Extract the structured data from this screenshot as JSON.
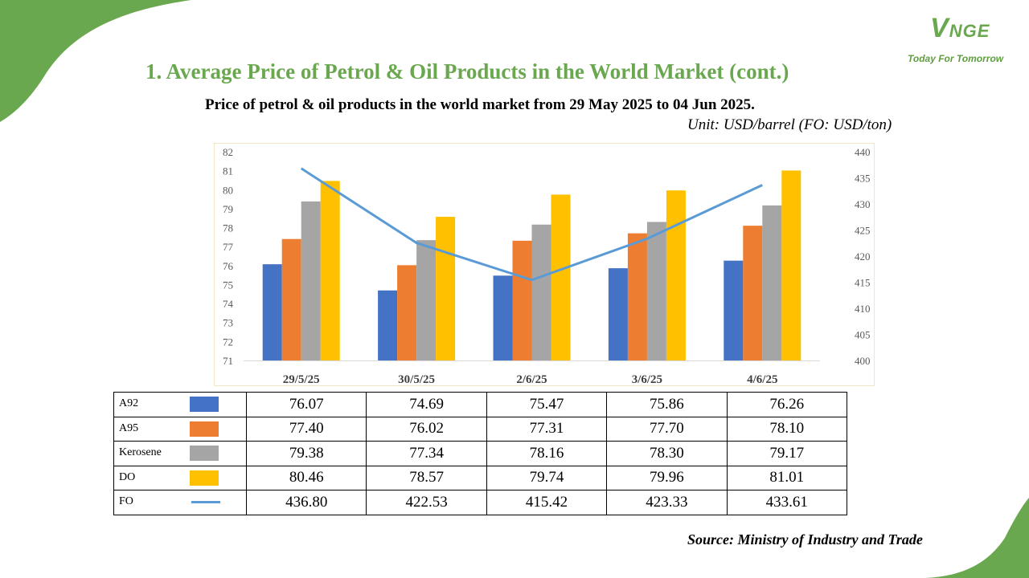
{
  "brand": {
    "logo_main": "V",
    "logo_rest": "NGE",
    "tagline": "Today For Tomorrow",
    "color": "#6aa84f"
  },
  "title": "1. Average Price of Petrol & Oil Products in the World Market (cont.)",
  "subtitle": "Price of petrol & oil products in the world market from 29 May 2025 to 04 Jun 2025.",
  "unit": "Unit: USD/barrel (FO: USD/ton)",
  "source": "Source: Ministry of Industry and Trade",
  "chart_data": {
    "type": "bar",
    "categories": [
      "29/5/25",
      "30/5/25",
      "2/6/25",
      "3/6/25",
      "4/6/25"
    ],
    "series": [
      {
        "name": "A92",
        "kind": "bar",
        "axis": "left",
        "color": "#4472c4",
        "values": [
          76.07,
          74.69,
          75.47,
          75.86,
          76.26
        ]
      },
      {
        "name": "A95",
        "kind": "bar",
        "axis": "left",
        "color": "#ed7d31",
        "values": [
          77.4,
          76.02,
          77.31,
          77.7,
          78.1
        ]
      },
      {
        "name": "Kerosene",
        "kind": "bar",
        "axis": "left",
        "color": "#a5a5a5",
        "values": [
          79.38,
          77.34,
          78.16,
          78.3,
          79.17
        ]
      },
      {
        "name": "DO",
        "kind": "bar",
        "axis": "left",
        "color": "#ffc000",
        "values": [
          80.46,
          78.57,
          79.74,
          79.96,
          81.01
        ]
      },
      {
        "name": "FO",
        "kind": "line",
        "axis": "right",
        "color": "#5b9bd5",
        "values": [
          436.8,
          422.53,
          415.42,
          423.33,
          433.61
        ]
      }
    ],
    "ylim_left": [
      71,
      82
    ],
    "yticks_left": [
      71,
      72,
      73,
      74,
      75,
      76,
      77,
      78,
      79,
      80,
      81,
      82
    ],
    "ylim_right": [
      400,
      440
    ],
    "yticks_right": [
      400,
      405,
      410,
      415,
      420,
      425,
      430,
      435,
      440
    ],
    "grid": false,
    "legend": "table-below"
  },
  "table": {
    "rows": [
      {
        "label": "A92",
        "values": [
          "76.07",
          "74.69",
          "75.47",
          "75.86",
          "76.26"
        ]
      },
      {
        "label": "A95",
        "values": [
          "77.40",
          "76.02",
          "77.31",
          "77.70",
          "78.10"
        ]
      },
      {
        "label": "Kerosene",
        "values": [
          "79.38",
          "77.34",
          "78.16",
          "78.30",
          "79.17"
        ]
      },
      {
        "label": "DO",
        "values": [
          "80.46",
          "78.57",
          "79.74",
          "79.96",
          "81.01"
        ]
      },
      {
        "label": "FO",
        "values": [
          "436.80",
          "422.53",
          "415.42",
          "423.33",
          "433.61"
        ]
      }
    ]
  }
}
